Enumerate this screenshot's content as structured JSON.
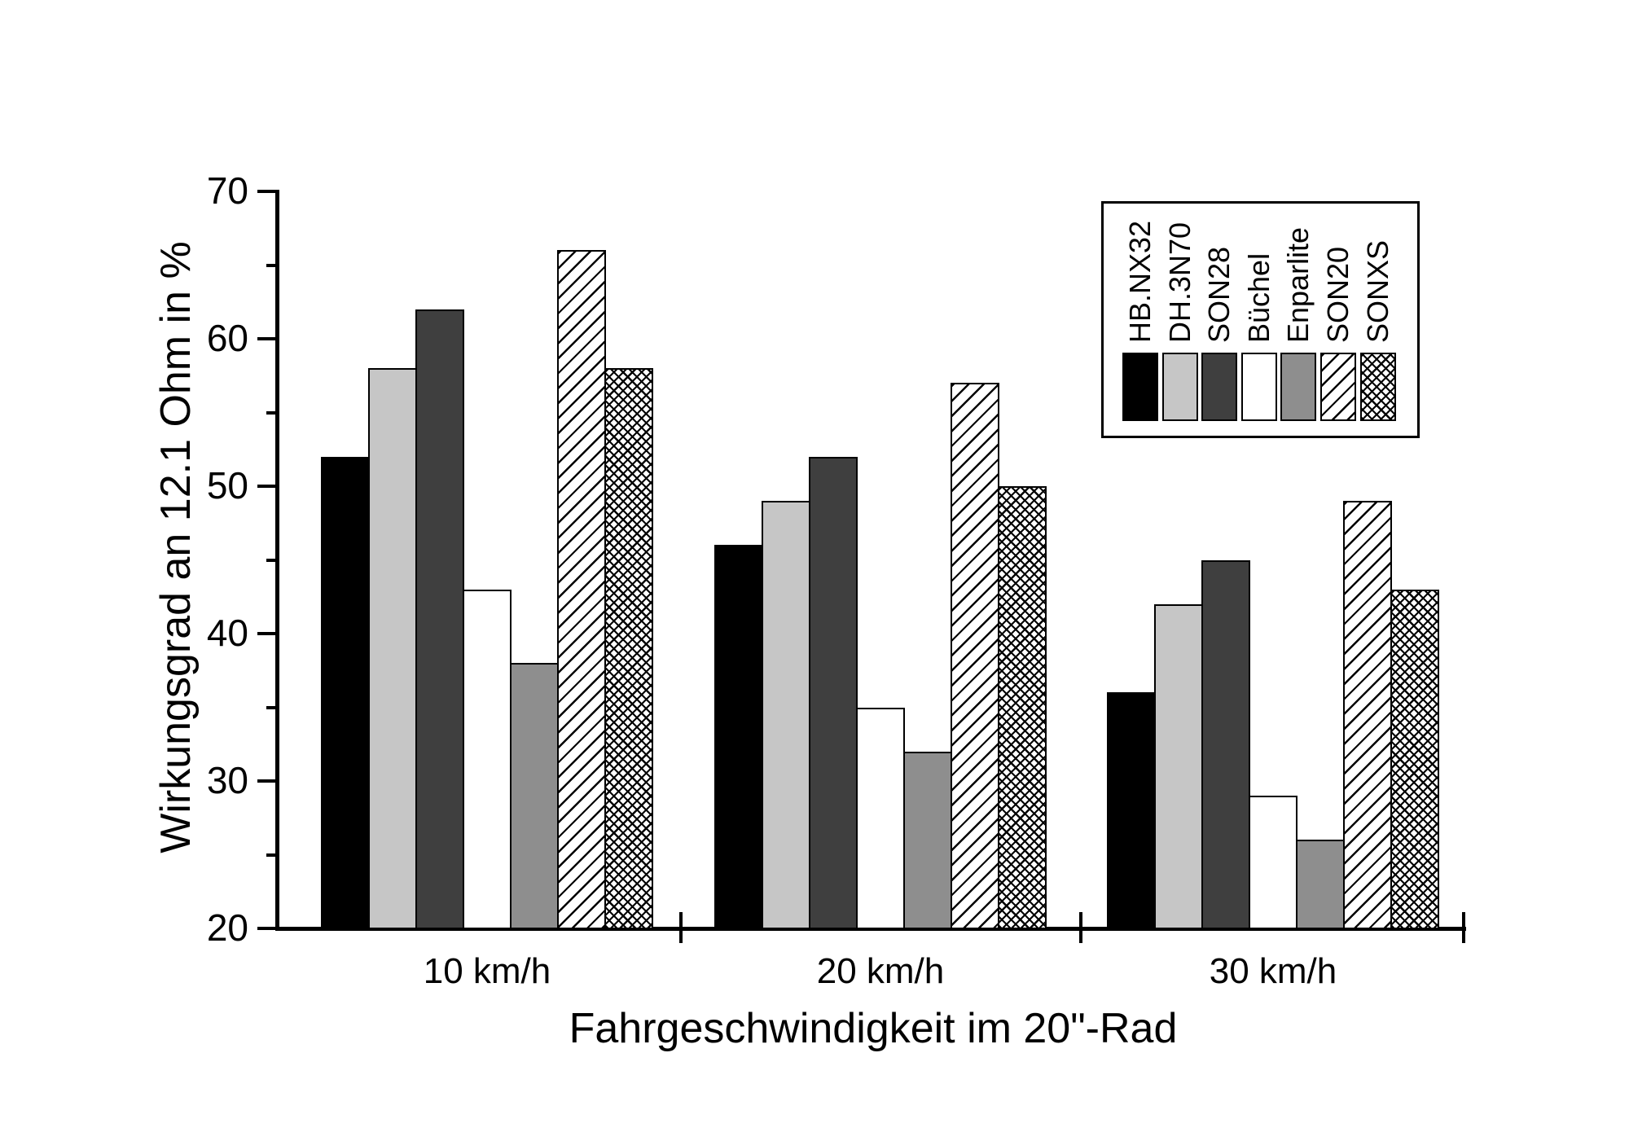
{
  "figure": {
    "kind": "grouped-bar-chart",
    "background": "#ffffff",
    "axis_color": "#000000",
    "bar_edge_color": "#000000"
  },
  "chart_data": {
    "type": "bar",
    "title": "",
    "xlabel": "Fahrgeschwindigkeit im 20\"-Rad",
    "ylabel": "Wirkungsgrad an 12.1 Ohm in %",
    "categories": [
      "10 km/h",
      "20 km/h",
      "30 km/h"
    ],
    "series": [
      {
        "name": "HB.NX32",
        "pattern": "solid",
        "color": "#000000",
        "values": [
          52,
          46,
          36
        ]
      },
      {
        "name": "DH.3N70",
        "pattern": "solid",
        "color": "#c6c6c6",
        "values": [
          58,
          49,
          42
        ]
      },
      {
        "name": "SON28",
        "pattern": "solid",
        "color": "#3f3f3f",
        "values": [
          62,
          52,
          45
        ]
      },
      {
        "name": "Büchel",
        "pattern": "solid",
        "color": "#ffffff",
        "values": [
          43,
          35,
          29
        ]
      },
      {
        "name": "Enparlite",
        "pattern": "solid",
        "color": "#8e8e8e",
        "values": [
          38,
          32,
          26
        ]
      },
      {
        "name": "SON20",
        "pattern": "diagonal-hatch",
        "color": "#ffffff",
        "values": [
          66,
          57,
          49
        ]
      },
      {
        "name": "SONXS",
        "pattern": "crosshatch",
        "color": "#ffffff",
        "values": [
          58,
          50,
          43
        ]
      }
    ],
    "ylim": [
      20,
      70
    ],
    "y_major_ticks": [
      20,
      30,
      40,
      50,
      60,
      70
    ],
    "y_minor_ticks": [
      25,
      35,
      45,
      55,
      65
    ],
    "grid": "off",
    "legend_position": "upper right"
  }
}
